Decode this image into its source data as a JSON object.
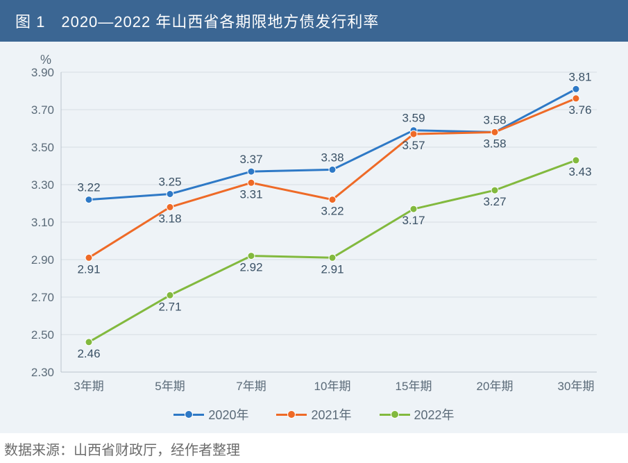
{
  "title": "图 1　2020—2022 年山西省各期限地方债发行利率",
  "source": "数据来源：山西省财政厅，经作者整理",
  "chart": {
    "type": "line",
    "background_color": "#eef3f7",
    "grid_color": "#d5dde3",
    "axis_color": "#b9c3cc",
    "text_color": "#5a6a78",
    "y_unit": "%",
    "y_min": 2.3,
    "y_max": 3.9,
    "y_step": 0.2,
    "y_ticks": [
      "2.30",
      "2.50",
      "2.70",
      "2.90",
      "3.10",
      "3.30",
      "3.50",
      "3.70",
      "3.90"
    ],
    "categories": [
      "3年期",
      "5年期",
      "7年期",
      "10年期",
      "15年期",
      "20年期",
      "30年期"
    ],
    "series": [
      {
        "name": "2020年",
        "color": "#2e79c6",
        "marker": "circle",
        "values": [
          3.22,
          3.25,
          3.37,
          3.38,
          3.59,
          3.58,
          3.81
        ],
        "labels_pos": [
          "above",
          "above",
          "above",
          "above",
          "above",
          "below",
          "above"
        ]
      },
      {
        "name": "2021年",
        "color": "#ee6a27",
        "marker": "circle",
        "values": [
          2.91,
          3.18,
          3.31,
          3.22,
          3.57,
          3.58,
          3.76
        ],
        "labels_pos": [
          "below",
          "below",
          "below",
          "below",
          "below",
          "above",
          "below"
        ]
      },
      {
        "name": "2022年",
        "color": "#82b93e",
        "marker": "circle",
        "values": [
          2.46,
          2.71,
          2.92,
          2.91,
          3.17,
          3.27,
          3.43
        ],
        "labels_pos": [
          "below",
          "below",
          "below",
          "below",
          "below",
          "below",
          "below"
        ]
      }
    ],
    "line_width": 3,
    "marker_radius": 5,
    "label_fontsize": 17,
    "tick_fontsize": 17
  },
  "legend_labels": {
    "s0": "2020年",
    "s1": "2021年",
    "s2": "2022年"
  }
}
